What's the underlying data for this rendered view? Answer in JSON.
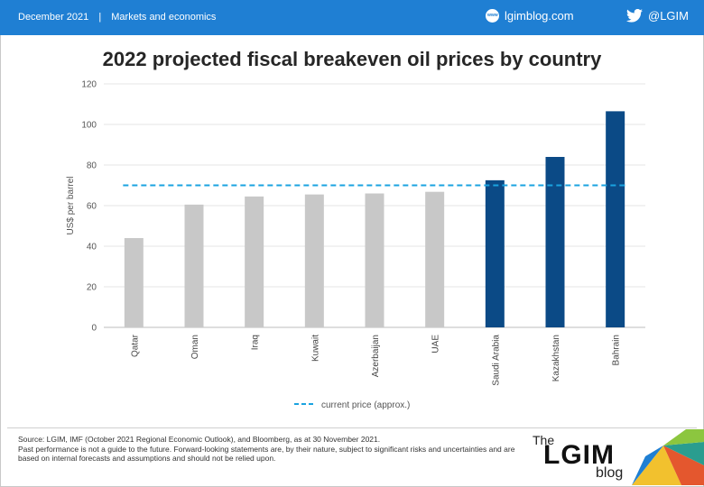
{
  "header": {
    "date": "December 2021",
    "section": "Markets and economics",
    "site": "lgimblog.com",
    "handle": "@LGIM"
  },
  "colors": {
    "header_bg": "#1f7fd3",
    "bar_grey": "#c8c8c8",
    "bar_blue": "#0b4a86",
    "line_current": "#1aa3e0"
  },
  "chart_data": {
    "type": "bar",
    "title": "2022 projected fiscal breakeven oil prices by country",
    "ylabel": "US$ per barrel",
    "xlabel": "",
    "ylim": [
      0,
      120
    ],
    "yticks": [
      0,
      20,
      40,
      60,
      80,
      100,
      120
    ],
    "categories": [
      "Qatar",
      "Oman",
      "Iraq",
      "Kuwait",
      "Azerbaijan",
      "UAE",
      "Saudi Arabia",
      "Kazakhstan",
      "Bahrain"
    ],
    "values": [
      44,
      60.5,
      64.5,
      65.5,
      66,
      66.8,
      72.5,
      84,
      106.5
    ],
    "highlight": [
      false,
      false,
      false,
      false,
      false,
      false,
      true,
      true,
      true
    ],
    "reference_line": {
      "name": "current price (approx.)",
      "value": 70,
      "style": "dashed"
    },
    "grid": true,
    "legend": "bottom"
  },
  "footer": {
    "source_line1": "Source: LGIM, IMF (October 2021 Regional Economic Outlook), and Bloomberg, as at 30 November 2021.",
    "source_line2": "Past performance is not a guide to the future. Forward-looking statements are, by their nature, subject to significant risks and uncertainties and are based on internal forecasts and assumptions and should not be relied upon.",
    "logo_the": "The",
    "logo_name": "LGIM",
    "logo_blog": "blog"
  }
}
